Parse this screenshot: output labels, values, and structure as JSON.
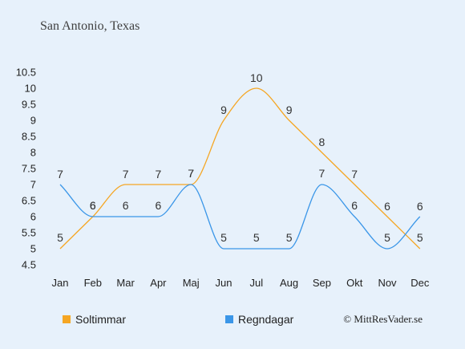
{
  "chart_data": {
    "type": "line",
    "title": "San Antonio, Texas",
    "categories": [
      "Jan",
      "Feb",
      "Mar",
      "Apr",
      "Maj",
      "Jun",
      "Jul",
      "Aug",
      "Sep",
      "Okt",
      "Nov",
      "Dec"
    ],
    "series": [
      {
        "name": "Soltimmar",
        "color": "#f5a623",
        "values": [
          5,
          6,
          7,
          7,
          7,
          9,
          10,
          9,
          8,
          7,
          6,
          5
        ]
      },
      {
        "name": "Regndagar",
        "color": "#3a96e8",
        "values": [
          7,
          6,
          6,
          6,
          7,
          5,
          5,
          5,
          7,
          6,
          5,
          6
        ]
      }
    ],
    "yticks": [
      "4.5",
      "5",
      "5.5",
      "6",
      "6.5",
      "7",
      "7.5",
      "8",
      "8.5",
      "9",
      "9.5",
      "10",
      "10.5"
    ],
    "ylim": [
      4.5,
      10.5
    ],
    "grid": false,
    "legend": "bottom-left"
  },
  "copyright": "© MittResVader.se"
}
